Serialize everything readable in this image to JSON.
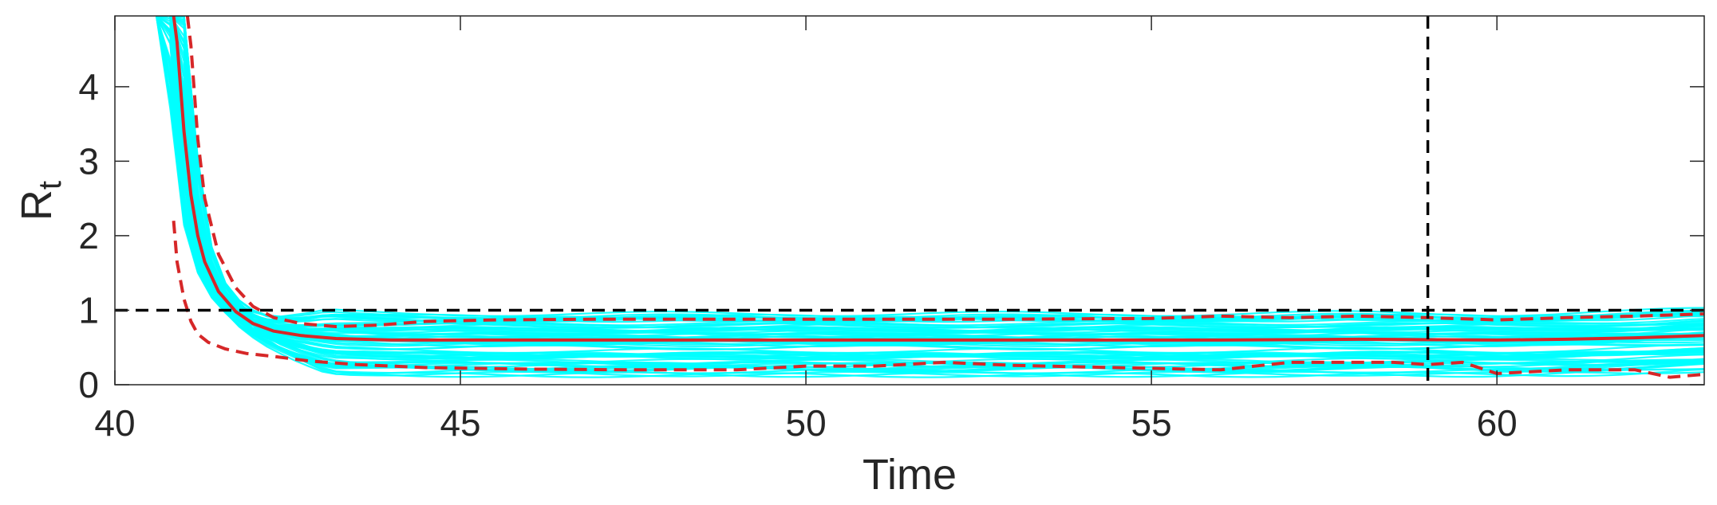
{
  "chart_data": {
    "type": "line",
    "title": "",
    "xlabel": "Time",
    "ylabel": {
      "main": "R",
      "subscript": "t"
    },
    "xlim": [
      40,
      63
    ],
    "ylim": [
      0,
      4.95
    ],
    "xticks": [
      40,
      45,
      50,
      55,
      60
    ],
    "yticks": [
      0,
      1,
      2,
      3,
      4
    ],
    "grid": false,
    "legend": "none",
    "colors": {
      "ensemble": "#00ffff",
      "median": "#d62728",
      "interval": "#d62728",
      "reference": "#000000",
      "axes": "#262626"
    },
    "reference_lines": {
      "horizontal_y": 1,
      "vertical_x": 59
    },
    "series": [
      {
        "style": "solid",
        "x": [
          40.85,
          40.9,
          41.0,
          41.1,
          41.2,
          41.3,
          41.5,
          41.75,
          42.0,
          42.3,
          42.7,
          43.2,
          44.0,
          46,
          48,
          50,
          52,
          54,
          56,
          58,
          60,
          61,
          62,
          63
        ],
        "values": [
          4.95,
          4.6,
          3.4,
          2.55,
          2.0,
          1.65,
          1.25,
          0.98,
          0.82,
          0.72,
          0.66,
          0.62,
          0.6,
          0.6,
          0.6,
          0.6,
          0.6,
          0.6,
          0.6,
          0.61,
          0.6,
          0.61,
          0.63,
          0.66
        ]
      },
      {
        "style": "dashed",
        "x": [
          41.05,
          41.1,
          41.2,
          41.3,
          41.5,
          41.75,
          42.0,
          42.3,
          42.7,
          43.2,
          43.8,
          44.5,
          45.5,
          47,
          49,
          51,
          53,
          55,
          56,
          57,
          58,
          59,
          60,
          61,
          62,
          63
        ],
        "values": [
          4.95,
          4.55,
          3.3,
          2.5,
          1.75,
          1.3,
          1.05,
          0.9,
          0.82,
          0.78,
          0.8,
          0.85,
          0.87,
          0.88,
          0.88,
          0.88,
          0.88,
          0.89,
          0.92,
          0.9,
          0.92,
          0.9,
          0.87,
          0.9,
          0.92,
          0.95
        ]
      },
      {
        "style": "dashed",
        "x": [
          40.85,
          40.9,
          41.0,
          41.1,
          41.2,
          41.35,
          41.6,
          41.9,
          42.3,
          42.8,
          43.5,
          44.5,
          46,
          47.5,
          49,
          50,
          51,
          52,
          53,
          54,
          55,
          56,
          57,
          58,
          58.5,
          59,
          59.5,
          60,
          61,
          62,
          62.5,
          63
        ],
        "values": [
          2.2,
          1.65,
          1.15,
          0.85,
          0.68,
          0.57,
          0.48,
          0.42,
          0.38,
          0.32,
          0.27,
          0.23,
          0.21,
          0.2,
          0.2,
          0.25,
          0.25,
          0.3,
          0.26,
          0.24,
          0.22,
          0.2,
          0.3,
          0.3,
          0.3,
          0.27,
          0.3,
          0.15,
          0.2,
          0.2,
          0.1,
          0.14
        ]
      }
    ]
  }
}
